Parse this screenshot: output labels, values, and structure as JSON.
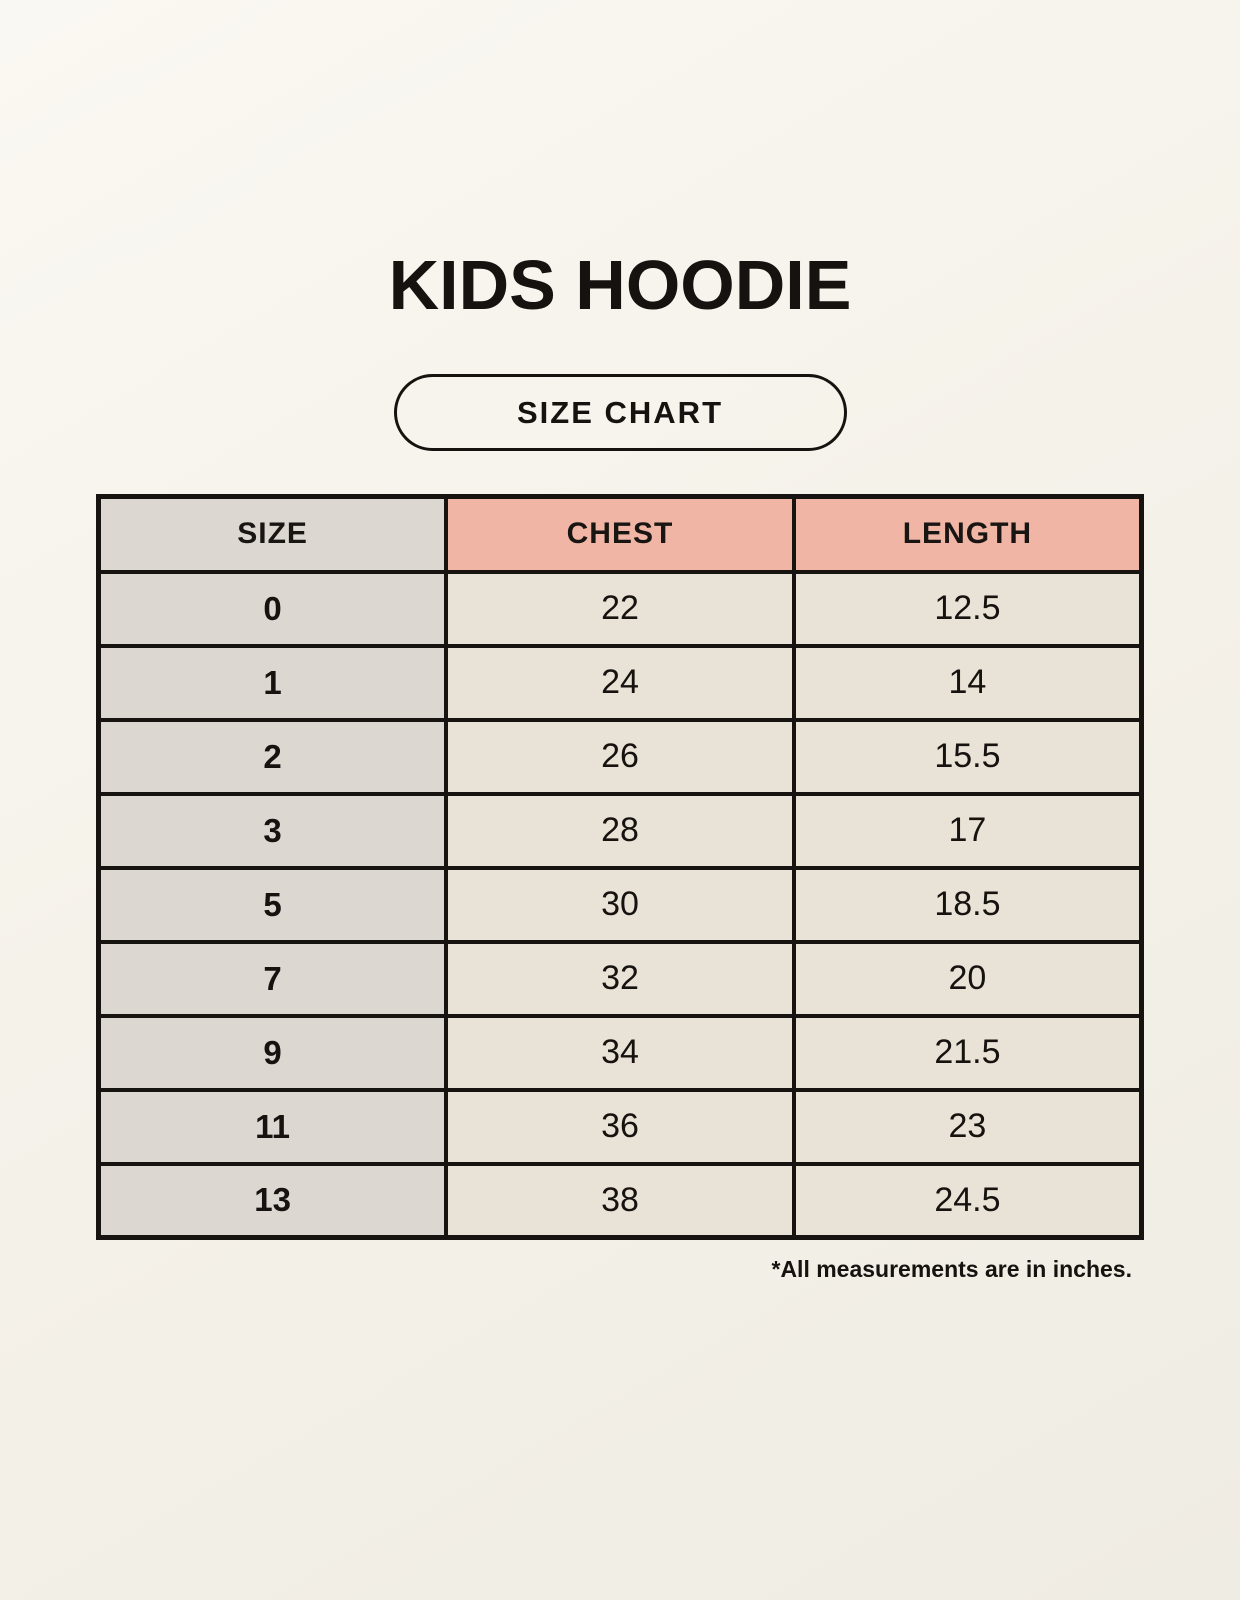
{
  "header": {
    "title": "KIDS HOODIE",
    "badge_label": "SIZE CHART"
  },
  "chart_data": {
    "type": "table",
    "title": "KIDS HOODIE",
    "columns": [
      "SIZE",
      "CHEST",
      "LENGTH"
    ],
    "rows": [
      [
        "0",
        "22",
        "12.5"
      ],
      [
        "1",
        "24",
        "14"
      ],
      [
        "2",
        "26",
        "15.5"
      ],
      [
        "3",
        "28",
        "17"
      ],
      [
        "5",
        "30",
        "18.5"
      ],
      [
        "7",
        "32",
        "20"
      ],
      [
        "9",
        "34",
        "21.5"
      ],
      [
        "11",
        "36",
        "23"
      ],
      [
        "13",
        "38",
        "24.5"
      ]
    ],
    "units_note": "*All measurements are in inches."
  },
  "footer": {
    "note": "*All measurements are in inches."
  },
  "colors": {
    "header_accent": "#f0b5a4",
    "size_column": "#ddd7d1",
    "data_cell": "#e9e2d6",
    "table_border": "#171310",
    "text": "#15120f",
    "background": "#f5f2ea"
  }
}
